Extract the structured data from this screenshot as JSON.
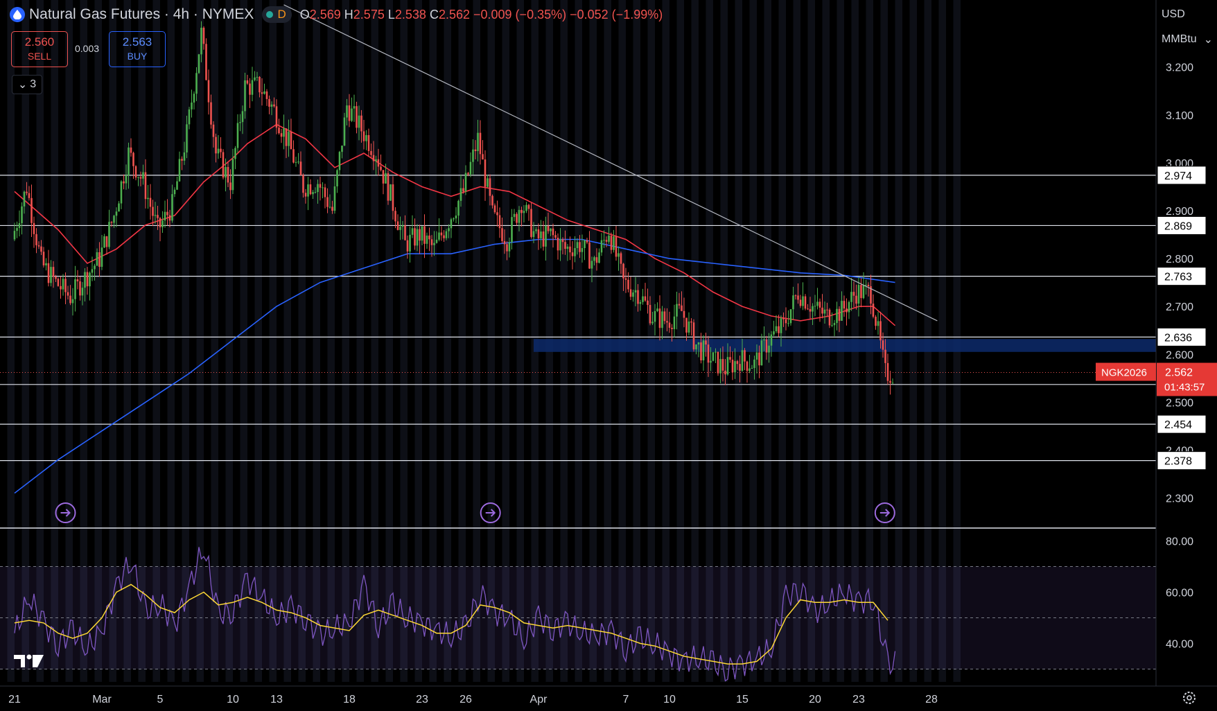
{
  "header": {
    "symbol_title": "Natural Gas Futures · 4h · NYMEX",
    "interval_badge": "D",
    "open_label": "O",
    "open": "2.569",
    "high_label": "H",
    "high": "2.575",
    "low_label": "L",
    "low": "2.538",
    "close_label": "C",
    "close": "2.562",
    "change": "−0.009 (−0.35%)",
    "change2": "−0.052 (−1.99%)"
  },
  "trade": {
    "sell_price": "2.560",
    "sell_label": "SELL",
    "spread": "0.003",
    "buy_price": "2.563",
    "buy_label": "BUY",
    "collapse_count": "3"
  },
  "scale": {
    "currency": "USD",
    "unit": "MMBtu"
  },
  "icons": {
    "logo": "tradingview-logo-icon",
    "settings": "gear-icon",
    "event": "dividend-arrow-icon",
    "symbol": "gas-drop-icon"
  },
  "colors": {
    "up": "#26a69a",
    "up_wick": "#4caf50",
    "down": "#ef5350",
    "ma_red": "#f23645",
    "ma_blue": "#2962ff",
    "rsi": "#7e57c2",
    "rsi_ma": "#fdd835",
    "zone": "#0d2a6b"
  },
  "chart_data": {
    "type": "candlestick",
    "timeframe": "4h",
    "price_range": [
      2.24,
      3.34
    ],
    "price_ticks": [
      "3.200",
      "3.100",
      "3.000",
      "2.900",
      "2.800",
      "2.700",
      "2.600",
      "2.500",
      "2.400",
      "2.300"
    ],
    "x_ticks": [
      {
        "label": "21",
        "day": 0
      },
      {
        "label": "Mar",
        "day": 6
      },
      {
        "label": "5",
        "day": 10
      },
      {
        "label": "10",
        "day": 15
      },
      {
        "label": "13",
        "day": 18
      },
      {
        "label": "18",
        "day": 23
      },
      {
        "label": "23",
        "day": 28
      },
      {
        "label": "26",
        "day": 31
      },
      {
        "label": "Apr",
        "day": 36
      },
      {
        "label": "7",
        "day": 42
      },
      {
        "label": "10",
        "day": 45
      },
      {
        "label": "15",
        "day": 50
      },
      {
        "label": "20",
        "day": 55
      },
      {
        "label": "23",
        "day": 58
      },
      {
        "label": "28",
        "day": 63
      }
    ],
    "horizontal_levels": [
      "2.974",
      "2.869",
      "2.763",
      "2.636",
      "2.537",
      "2.454",
      "2.378"
    ],
    "support_zone": [
      2.605,
      2.632
    ],
    "current_price": {
      "symbol": "NGK2026",
      "price": "2.562",
      "countdown": "01:43:57"
    },
    "close_path": [
      {
        "day": 0,
        "price": 2.84
      },
      {
        "day": 1,
        "price": 2.95
      },
      {
        "day": 2,
        "price": 2.79
      },
      {
        "day": 3,
        "price": 2.75
      },
      {
        "day": 4,
        "price": 2.72
      },
      {
        "day": 5,
        "price": 2.76
      },
      {
        "day": 6,
        "price": 2.8
      },
      {
        "day": 7,
        "price": 2.89
      },
      {
        "day": 8,
        "price": 3.02
      },
      {
        "day": 9,
        "price": 2.96
      },
      {
        "day": 10,
        "price": 2.86
      },
      {
        "day": 11,
        "price": 2.91
      },
      {
        "day": 12,
        "price": 3.06
      },
      {
        "day": 13,
        "price": 3.27
      },
      {
        "day": 14,
        "price": 3.02
      },
      {
        "day": 15,
        "price": 2.96
      },
      {
        "day": 16,
        "price": 3.16
      },
      {
        "day": 17,
        "price": 3.16
      },
      {
        "day": 18,
        "price": 3.11
      },
      {
        "day": 19,
        "price": 3.04
      },
      {
        "day": 20,
        "price": 2.95
      },
      {
        "day": 21,
        "price": 2.96
      },
      {
        "day": 22,
        "price": 2.9
      },
      {
        "day": 23,
        "price": 3.12
      },
      {
        "day": 24,
        "price": 3.07
      },
      {
        "day": 25,
        "price": 3.02
      },
      {
        "day": 26,
        "price": 2.93
      },
      {
        "day": 27,
        "price": 2.83
      },
      {
        "day": 28,
        "price": 2.85
      },
      {
        "day": 29,
        "price": 2.82
      },
      {
        "day": 30,
        "price": 2.88
      },
      {
        "day": 31,
        "price": 2.94
      },
      {
        "day": 32,
        "price": 3.05
      },
      {
        "day": 33,
        "price": 2.89
      },
      {
        "day": 34,
        "price": 2.84
      },
      {
        "day": 35,
        "price": 2.92
      },
      {
        "day": 36,
        "price": 2.84
      },
      {
        "day": 37,
        "price": 2.85
      },
      {
        "day": 38,
        "price": 2.82
      },
      {
        "day": 39,
        "price": 2.83
      },
      {
        "day": 40,
        "price": 2.79
      },
      {
        "day": 41,
        "price": 2.86
      },
      {
        "day": 42,
        "price": 2.75
      },
      {
        "day": 43,
        "price": 2.73
      },
      {
        "day": 44,
        "price": 2.68
      },
      {
        "day": 45,
        "price": 2.67
      },
      {
        "day": 46,
        "price": 2.69
      },
      {
        "day": 47,
        "price": 2.62
      },
      {
        "day": 48,
        "price": 2.59
      },
      {
        "day": 49,
        "price": 2.57
      },
      {
        "day": 50,
        "price": 2.59
      },
      {
        "day": 51,
        "price": 2.58
      },
      {
        "day": 52,
        "price": 2.63
      },
      {
        "day": 53,
        "price": 2.66
      },
      {
        "day": 54,
        "price": 2.73
      },
      {
        "day": 55,
        "price": 2.7
      },
      {
        "day": 56,
        "price": 2.68
      },
      {
        "day": 57,
        "price": 2.69
      },
      {
        "day": 58,
        "price": 2.73
      },
      {
        "day": 59,
        "price": 2.73
      },
      {
        "day": 60,
        "price": 2.56
      }
    ],
    "ma_red": [
      {
        "day": 0,
        "price": 2.94
      },
      {
        "day": 3,
        "price": 2.86
      },
      {
        "day": 5,
        "price": 2.79
      },
      {
        "day": 7,
        "price": 2.82
      },
      {
        "day": 9,
        "price": 2.87
      },
      {
        "day": 11,
        "price": 2.89
      },
      {
        "day": 13,
        "price": 2.96
      },
      {
        "day": 15,
        "price": 3.01
      },
      {
        "day": 16,
        "price": 3.04
      },
      {
        "day": 18,
        "price": 3.08
      },
      {
        "day": 20,
        "price": 3.05
      },
      {
        "day": 22,
        "price": 2.99
      },
      {
        "day": 24,
        "price": 3.02
      },
      {
        "day": 26,
        "price": 2.98
      },
      {
        "day": 28,
        "price": 2.95
      },
      {
        "day": 30,
        "price": 2.93
      },
      {
        "day": 32,
        "price": 2.95
      },
      {
        "day": 34,
        "price": 2.94
      },
      {
        "day": 36,
        "price": 2.91
      },
      {
        "day": 38,
        "price": 2.88
      },
      {
        "day": 40,
        "price": 2.86
      },
      {
        "day": 42,
        "price": 2.84
      },
      {
        "day": 44,
        "price": 2.8
      },
      {
        "day": 46,
        "price": 2.77
      },
      {
        "day": 48,
        "price": 2.73
      },
      {
        "day": 50,
        "price": 2.7
      },
      {
        "day": 52,
        "price": 2.68
      },
      {
        "day": 54,
        "price": 2.67
      },
      {
        "day": 56,
        "price": 2.68
      },
      {
        "day": 58,
        "price": 2.7
      },
      {
        "day": 59,
        "price": 2.7
      },
      {
        "day": 60.5,
        "price": 2.66
      }
    ],
    "ma_blue": [
      {
        "day": 0,
        "price": 2.31
      },
      {
        "day": 3,
        "price": 2.38
      },
      {
        "day": 6,
        "price": 2.44
      },
      {
        "day": 9,
        "price": 2.5
      },
      {
        "day": 12,
        "price": 2.56
      },
      {
        "day": 15,
        "price": 2.63
      },
      {
        "day": 18,
        "price": 2.7
      },
      {
        "day": 21,
        "price": 2.75
      },
      {
        "day": 24,
        "price": 2.78
      },
      {
        "day": 27,
        "price": 2.81
      },
      {
        "day": 30,
        "price": 2.81
      },
      {
        "day": 33,
        "price": 2.83
      },
      {
        "day": 36,
        "price": 2.84
      },
      {
        "day": 39,
        "price": 2.84
      },
      {
        "day": 42,
        "price": 2.82
      },
      {
        "day": 45,
        "price": 2.8
      },
      {
        "day": 48,
        "price": 2.79
      },
      {
        "day": 51,
        "price": 2.78
      },
      {
        "day": 54,
        "price": 2.77
      },
      {
        "day": 57,
        "price": 2.765
      },
      {
        "day": 60.5,
        "price": 2.75
      }
    ],
    "trendline": [
      {
        "day": 18.5,
        "price": 3.33
      },
      {
        "day": 63.4,
        "price": 2.67
      }
    ],
    "event_markers_day": [
      3.5,
      32.7,
      59.8
    ],
    "rsi": {
      "range": [
        25,
        85
      ],
      "ticks": [
        "80.00",
        "60.00",
        "40.00"
      ],
      "band": [
        30,
        70
      ],
      "values": [
        44,
        58,
        48,
        40,
        45,
        38,
        45,
        62,
        73,
        52,
        56,
        47,
        62,
        78,
        51,
        53,
        65,
        58,
        50,
        54,
        50,
        43,
        46,
        48,
        63,
        47,
        55,
        50,
        48,
        45,
        43,
        46,
        60,
        52,
        50,
        41,
        50,
        46,
        48,
        44,
        43,
        45,
        38,
        42,
        40,
        36,
        33,
        35,
        32,
        30,
        32,
        34,
        38,
        58,
        62,
        52,
        56,
        60,
        56,
        58,
        32
      ],
      "ma": [
        48,
        49,
        48,
        44,
        42,
        44,
        50,
        60,
        63,
        59,
        54,
        52,
        57,
        60,
        55,
        56,
        58,
        56,
        53,
        52,
        50,
        47,
        46,
        45,
        51,
        53,
        51,
        49,
        47,
        44,
        44,
        47,
        55,
        54,
        52,
        48,
        47,
        46,
        47,
        46,
        45,
        44,
        42,
        40,
        39,
        37,
        35,
        34,
        33,
        32,
        32,
        33,
        38,
        50,
        57,
        56,
        56,
        57,
        56,
        56,
        49
      ]
    }
  }
}
